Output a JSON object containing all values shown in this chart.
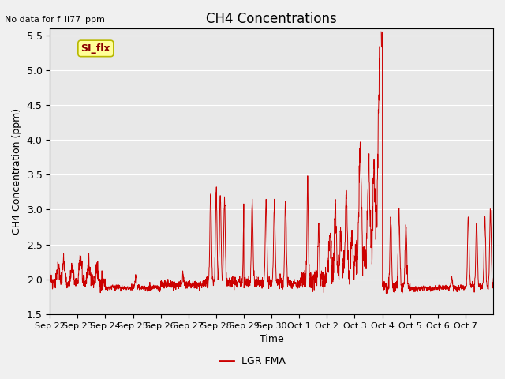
{
  "title": "CH4 Concentrations",
  "ylabel": "CH4 Concentration (ppm)",
  "xlabel": "Time",
  "top_left_text": "No data for f_li77_ppm",
  "annotation_text": "SI_flx",
  "ylim": [
    1.5,
    5.6
  ],
  "yticks": [
    1.5,
    2.0,
    2.5,
    3.0,
    3.5,
    4.0,
    4.5,
    5.0,
    5.5
  ],
  "line_color": "#cc0000",
  "legend_label": "LGR FMA",
  "plot_bg_color": "#e8e8e8",
  "fig_bg_color": "#f0f0f0",
  "annotation_box_color": "#ffff99",
  "annotation_text_color": "#8b0000",
  "annotation_edge_color": "#b8b800",
  "x_tick_labels": [
    "Sep 22",
    "Sep 23",
    "Sep 24",
    "Sep 25",
    "Sep 26",
    "Sep 27",
    "Sep 28",
    "Sep 29",
    "Sep 30",
    "Oct 1",
    "Oct 2",
    "Oct 3",
    "Oct 4",
    "Oct 5",
    "Oct 6",
    "Oct 7"
  ]
}
